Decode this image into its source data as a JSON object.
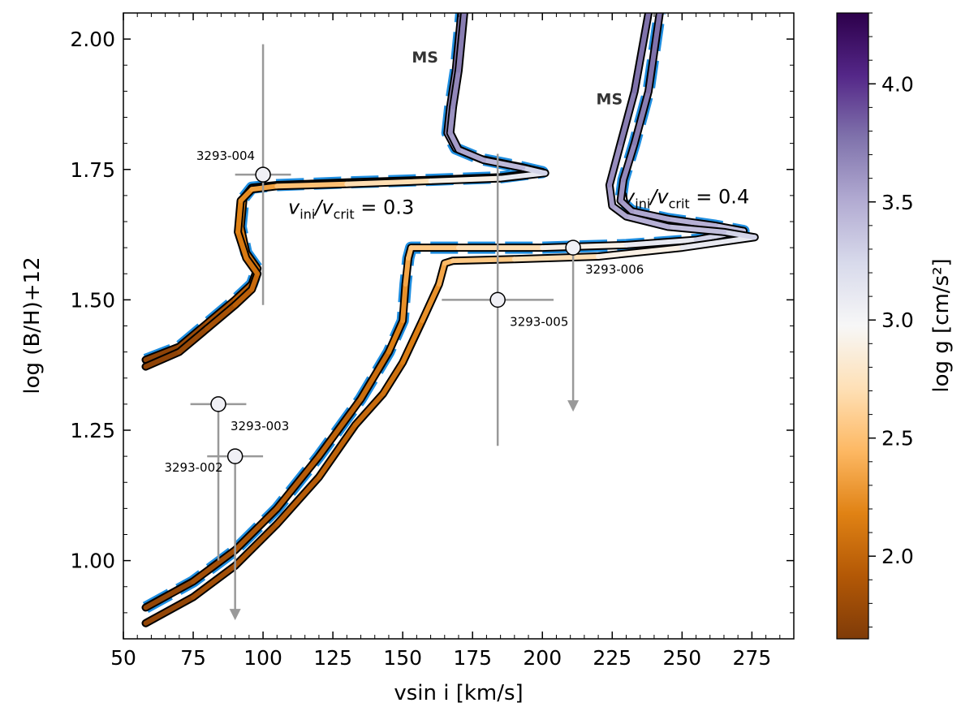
{
  "chart_data": {
    "type": "line",
    "xlabel": "vsin i [km/s]",
    "ylabel": "log  (B/H)+12",
    "xlim": [
      50,
      290
    ],
    "ylim": [
      0.85,
      2.05
    ],
    "xticks": [
      "50",
      "75",
      "100",
      "125",
      "150",
      "175",
      "200",
      "225",
      "250",
      "275"
    ],
    "yticks": [
      "1.00",
      "1.25",
      "1.50",
      "1.75",
      "2.00"
    ],
    "colorbar": {
      "label": "log g [cm/s²]",
      "range": [
        1.65,
        4.3
      ],
      "ticks": [
        "2.0",
        "2.5",
        "3.0",
        "3.5",
        "4.0"
      ],
      "colors": [
        "#7f3b08",
        "#b35806",
        "#e08214",
        "#fdb863",
        "#fee0b6",
        "#f7f7f7",
        "#d8daeb",
        "#b2abd2",
        "#8073ac",
        "#542788",
        "#2d004b"
      ]
    },
    "track_colors": {
      "dashed": "#1f8ee0",
      "outline": "#000000"
    },
    "series": [
      {
        "name": "v_ini/v_crit = 0.3",
        "style": "dashed-track",
        "points": [
          [
            58,
            1.385,
            1.7
          ],
          [
            70,
            1.41,
            1.75
          ],
          [
            80,
            1.455,
            1.8
          ],
          [
            90,
            1.5,
            1.9
          ],
          [
            96,
            1.53,
            2.0
          ],
          [
            98,
            1.56,
            2.05
          ],
          [
            94,
            1.59,
            2.1
          ],
          [
            92,
            1.64,
            2.15
          ],
          [
            93,
            1.695,
            2.2
          ],
          [
            96,
            1.715,
            2.25
          ],
          [
            105,
            1.72,
            2.4
          ],
          [
            130,
            1.725,
            2.6
          ],
          [
            160,
            1.73,
            2.8
          ],
          [
            185,
            1.735,
            3.0
          ],
          [
            200,
            1.745,
            3.2
          ],
          [
            192,
            1.755,
            3.35
          ],
          [
            178,
            1.77,
            3.5
          ],
          [
            169,
            1.79,
            3.55
          ],
          [
            166,
            1.82,
            3.6
          ],
          [
            167,
            1.87,
            3.65
          ],
          [
            169,
            1.94,
            3.7
          ],
          [
            171,
            2.05,
            3.75
          ]
        ]
      },
      {
        "name": "v_ini/v_crit = 0.3",
        "style": "solid-track",
        "points": [
          [
            58,
            1.372,
            1.7
          ],
          [
            70,
            1.4,
            1.75
          ],
          [
            80,
            1.445,
            1.8
          ],
          [
            90,
            1.49,
            1.9
          ],
          [
            96,
            1.52,
            2.0
          ],
          [
            98,
            1.55,
            2.05
          ],
          [
            94,
            1.58,
            2.1
          ],
          [
            91,
            1.63,
            2.15
          ],
          [
            92,
            1.69,
            2.2
          ],
          [
            96,
            1.712,
            2.25
          ],
          [
            105,
            1.718,
            2.4
          ],
          [
            130,
            1.722,
            2.6
          ],
          [
            160,
            1.728,
            2.8
          ],
          [
            185,
            1.733,
            3.0
          ],
          [
            201,
            1.743,
            3.2
          ],
          [
            193,
            1.753,
            3.35
          ],
          [
            179,
            1.768,
            3.5
          ],
          [
            170,
            1.788,
            3.55
          ],
          [
            167,
            1.82,
            3.6
          ],
          [
            168,
            1.87,
            3.65
          ],
          [
            170,
            1.94,
            3.7
          ],
          [
            172,
            2.05,
            3.75
          ]
        ]
      },
      {
        "name": "v_ini/v_crit = 0.4",
        "style": "dashed-track",
        "points": [
          [
            58,
            0.91,
            1.7
          ],
          [
            75,
            0.96,
            1.8
          ],
          [
            90,
            1.02,
            1.85
          ],
          [
            105,
            1.1,
            1.9
          ],
          [
            120,
            1.2,
            1.95
          ],
          [
            135,
            1.31,
            2.0
          ],
          [
            145,
            1.4,
            2.1
          ],
          [
            150,
            1.46,
            2.2
          ],
          [
            151,
            1.53,
            2.3
          ],
          [
            152,
            1.58,
            2.4
          ],
          [
            153,
            1.6,
            2.5
          ],
          [
            170,
            1.6,
            2.6
          ],
          [
            200,
            1.6,
            2.8
          ],
          [
            230,
            1.605,
            3.0
          ],
          [
            255,
            1.615,
            3.2
          ],
          [
            272,
            1.632,
            3.35
          ],
          [
            262,
            1.642,
            3.45
          ],
          [
            245,
            1.655,
            3.5
          ],
          [
            232,
            1.67,
            3.55
          ],
          [
            228,
            1.69,
            3.6
          ],
          [
            229,
            1.73,
            3.65
          ],
          [
            233,
            1.8,
            3.7
          ],
          [
            238,
            1.9,
            3.75
          ],
          [
            242,
            2.05,
            3.8
          ]
        ]
      },
      {
        "name": "v_ini/v_crit = 0.4",
        "style": "solid-track",
        "points": [
          [
            58,
            0.88,
            1.7
          ],
          [
            75,
            0.93,
            1.8
          ],
          [
            90,
            0.99,
            1.85
          ],
          [
            105,
            1.07,
            1.9
          ],
          [
            120,
            1.16,
            1.95
          ],
          [
            133,
            1.26,
            2.0
          ],
          [
            143,
            1.32,
            2.05
          ],
          [
            150,
            1.38,
            2.1
          ],
          [
            157,
            1.46,
            2.2
          ],
          [
            163,
            1.53,
            2.3
          ],
          [
            165,
            1.57,
            2.4
          ],
          [
            168,
            1.575,
            2.5
          ],
          [
            190,
            1.578,
            2.6
          ],
          [
            220,
            1.583,
            2.8
          ],
          [
            250,
            1.6,
            3.0
          ],
          [
            276,
            1.62,
            3.2
          ],
          [
            265,
            1.63,
            3.35
          ],
          [
            245,
            1.64,
            3.45
          ],
          [
            230,
            1.66,
            3.5
          ],
          [
            225,
            1.68,
            3.55
          ],
          [
            224,
            1.72,
            3.6
          ],
          [
            228,
            1.8,
            3.7
          ],
          [
            233,
            1.9,
            3.75
          ],
          [
            238,
            2.05,
            3.8
          ]
        ]
      }
    ],
    "stars": [
      {
        "id": "3293-002",
        "x": 90,
        "y": 1.2,
        "xerr": 10,
        "yerr_plus": 0,
        "yerr_minus": 0,
        "upper_limit": true,
        "label": "3293-002",
        "label_pos": "left"
      },
      {
        "id": "3293-003",
        "x": 84,
        "y": 1.3,
        "xerr": 10,
        "yerr_plus": 0,
        "yerr_minus": 0.3,
        "upper_limit": false,
        "label": "3293-003",
        "label_pos": "right-below"
      },
      {
        "id": "3293-004",
        "x": 100,
        "y": 1.74,
        "xerr": 10,
        "yerr_plus": 0.25,
        "yerr_minus": 0.25,
        "upper_limit": false,
        "label": "3293-004",
        "label_pos": "above-left"
      },
      {
        "id": "3293-005",
        "x": 184,
        "y": 1.5,
        "xerr": 20,
        "yerr_plus": 0.28,
        "yerr_minus": 0.28,
        "upper_limit": false,
        "label": "3293-005",
        "label_pos": "right-below"
      },
      {
        "id": "3293-006",
        "x": 211,
        "y": 1.6,
        "xerr": 0,
        "yerr_plus": 0,
        "yerr_minus": 0,
        "upper_limit": true,
        "label": "3293-006",
        "label_pos": "right-below"
      }
    ],
    "annotations": [
      {
        "text": "MS",
        "x": 158,
        "y": 1.955,
        "style": "bold"
      },
      {
        "text": "MS",
        "x": 224,
        "y": 1.875,
        "style": "bold"
      },
      {
        "main": "v",
        "sub1": "ini",
        "sep": "/v",
        "sub2": "crit",
        "eq": " = 0.3",
        "x": 109,
        "y": 1.665
      },
      {
        "main": "v",
        "sub1": "ini",
        "sep": "/v",
        "sub2": "crit",
        "eq": " = 0.4",
        "x": 229,
        "y": 1.685
      }
    ]
  }
}
